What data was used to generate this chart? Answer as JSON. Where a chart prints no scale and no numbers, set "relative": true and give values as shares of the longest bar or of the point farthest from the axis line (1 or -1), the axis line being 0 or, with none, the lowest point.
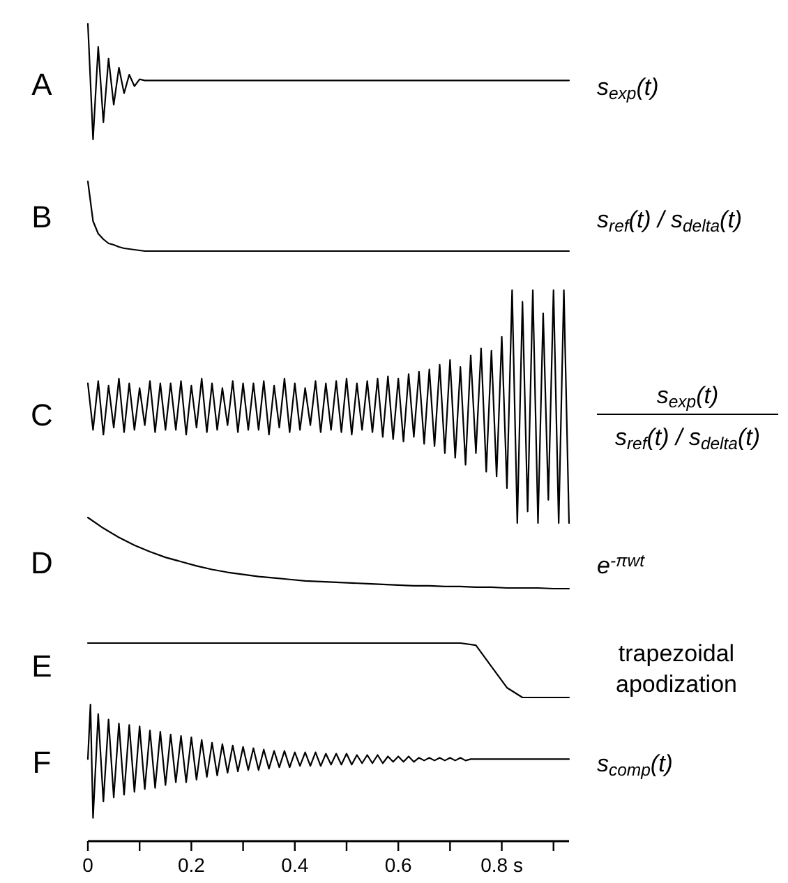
{
  "chart_data": [
    {
      "type": "line",
      "title": "A",
      "ylabel": "s$_{exp}$(t)",
      "relative": true,
      "tick_labels": false,
      "color": "#000000",
      "x": [
        0,
        0.01,
        0.02,
        0.03,
        0.04,
        0.05,
        0.06,
        0.07,
        0.08,
        0.09,
        0.1,
        0.11,
        0.12,
        0.13,
        0.14,
        0.15,
        0.16,
        0.17,
        0.18,
        0.19,
        0.2,
        0.21,
        0.22,
        0.23,
        0.24,
        0.25,
        0.26,
        0.27,
        0.28,
        0.29,
        0.3,
        0.31,
        0.32,
        0.33,
        0.34,
        0.35,
        0.36,
        0.37,
        0.38,
        0.39,
        0.4,
        0.41,
        0.42,
        0.43,
        0.44,
        0.45,
        0.46,
        0.47,
        0.48,
        0.49,
        0.5,
        0.51,
        0.52,
        0.53,
        0.54,
        0.55,
        0.56,
        0.57,
        0.58,
        0.59,
        0.6,
        0.61,
        0.62,
        0.63,
        0.64,
        0.65,
        0.66,
        0.67,
        0.68,
        0.69,
        0.7,
        0.71,
        0.72,
        0.73,
        0.74,
        0.75,
        0.76,
        0.77,
        0.78,
        0.79,
        0.8,
        0.81,
        0.82,
        0.83,
        0.84,
        0.85,
        0.86,
        0.87,
        0.88,
        0.89,
        0.9,
        0.91,
        0.92,
        0.93
      ],
      "values": [
        1,
        0,
        0.8,
        0.15,
        0.7,
        0.3,
        0.62,
        0.4,
        0.56,
        0.46,
        0.52,
        0.51,
        0.51,
        0.51,
        0.51,
        0.51,
        0.51,
        0.51,
        0.51,
        0.51,
        0.51,
        0.51,
        0.51,
        0.51,
        0.51,
        0.51,
        0.51,
        0.51,
        0.51,
        0.51,
        0.51,
        0.51,
        0.51,
        0.51,
        0.51,
        0.51,
        0.51,
        0.51,
        0.51,
        0.51,
        0.51,
        0.51,
        0.51,
        0.51,
        0.51,
        0.51,
        0.51,
        0.51,
        0.51,
        0.51,
        0.51,
        0.51,
        0.51,
        0.51,
        0.51,
        0.51,
        0.51,
        0.51,
        0.51,
        0.51,
        0.51,
        0.51,
        0.51,
        0.51,
        0.51,
        0.51,
        0.51,
        0.51,
        0.51,
        0.51,
        0.51,
        0.51,
        0.51,
        0.51,
        0.51,
        0.51,
        0.51,
        0.51,
        0.51,
        0.51,
        0.51,
        0.51,
        0.51,
        0.51,
        0.51,
        0.51,
        0.51,
        0.51,
        0.51,
        0.51,
        0.51,
        0.51,
        0.51,
        0.51
      ]
    },
    {
      "type": "line",
      "title": "B",
      "ylabel": "s$_{ref}$(t) / s$_{delta}$(t)",
      "relative": true,
      "tick_labels": false,
      "color": "#000000",
      "x": [
        0,
        0.01,
        0.02,
        0.03,
        0.04,
        0.05,
        0.06,
        0.07,
        0.08,
        0.09,
        0.1,
        0.11,
        0.12,
        0.13,
        0.14,
        0.15,
        0.16,
        0.17,
        0.18,
        0.19,
        0.2,
        0.21,
        0.22,
        0.23,
        0.24,
        0.25,
        0.26,
        0.27,
        0.28,
        0.29,
        0.3,
        0.31,
        0.32,
        0.33,
        0.34,
        0.35,
        0.36,
        0.37,
        0.38,
        0.39,
        0.4,
        0.41,
        0.42,
        0.43,
        0.44,
        0.45,
        0.46,
        0.47,
        0.48,
        0.49,
        0.5,
        0.51,
        0.52,
        0.53,
        0.54,
        0.55,
        0.56,
        0.57,
        0.58,
        0.59,
        0.6,
        0.61,
        0.62,
        0.63,
        0.64,
        0.65,
        0.66,
        0.67,
        0.68,
        0.69,
        0.7,
        0.71,
        0.72,
        0.73,
        0.74,
        0.75,
        0.76,
        0.77,
        0.78,
        0.79,
        0.8,
        0.81,
        0.82,
        0.83,
        0.84,
        0.85,
        0.86,
        0.87,
        0.88,
        0.89,
        0.9,
        0.91,
        0.92,
        0.93
      ],
      "values": [
        1,
        0.43,
        0.25,
        0.17,
        0.11,
        0.09,
        0.06,
        0.04,
        0.03,
        0.02,
        0.01,
        0,
        0,
        0,
        0,
        0,
        0,
        0,
        0,
        0,
        0,
        0,
        0,
        0,
        0,
        0,
        0,
        0,
        0,
        0,
        0,
        0,
        0,
        0,
        0,
        0,
        0,
        0,
        0,
        0,
        0,
        0,
        0,
        0,
        0,
        0,
        0,
        0,
        0,
        0,
        0,
        0,
        0,
        0,
        0,
        0,
        0,
        0,
        0,
        0,
        0,
        0,
        0,
        0,
        0,
        0,
        0,
        0,
        0,
        0,
        0,
        0,
        0,
        0,
        0,
        0,
        0,
        0,
        0,
        0,
        0,
        0,
        0,
        0,
        0,
        0,
        0,
        0,
        0,
        0,
        0,
        0,
        0,
        0
      ]
    },
    {
      "type": "line",
      "title": "C",
      "ylabel": "s$_{exp}$(t)",
      "annotations": [
        "s$_{ref}$(t) / s$_{delta}$(t)"
      ],
      "relative": true,
      "tick_labels": false,
      "color": "#000000",
      "x": [
        0,
        0.01,
        0.02,
        0.03,
        0.04,
        0.05,
        0.06,
        0.07,
        0.08,
        0.09,
        0.1,
        0.11,
        0.12,
        0.13,
        0.14,
        0.15,
        0.16,
        0.17,
        0.18,
        0.19,
        0.2,
        0.21,
        0.22,
        0.23,
        0.24,
        0.25,
        0.26,
        0.27,
        0.28,
        0.29,
        0.3,
        0.31,
        0.32,
        0.33,
        0.34,
        0.35,
        0.36,
        0.37,
        0.38,
        0.39,
        0.4,
        0.41,
        0.42,
        0.43,
        0.44,
        0.45,
        0.46,
        0.47,
        0.48,
        0.49,
        0.5,
        0.51,
        0.52,
        0.53,
        0.54,
        0.55,
        0.56,
        0.57,
        0.58,
        0.59,
        0.6,
        0.61,
        0.62,
        0.63,
        0.64,
        0.65,
        0.66,
        0.67,
        0.68,
        0.69,
        0.7,
        0.71,
        0.72,
        0.73,
        0.74,
        0.75,
        0.76,
        0.77,
        0.78,
        0.79,
        0.8,
        0.81,
        0.82,
        0.83,
        0.84,
        0.85,
        0.86,
        0.87,
        0.88,
        0.89,
        0.9,
        0.91,
        0.92,
        0.93
      ],
      "values": [
        0.6,
        0.4,
        0.61,
        0.38,
        0.59,
        0.41,
        0.62,
        0.39,
        0.6,
        0.4,
        0.58,
        0.42,
        0.61,
        0.39,
        0.6,
        0.4,
        0.6,
        0.4,
        0.61,
        0.38,
        0.59,
        0.41,
        0.62,
        0.39,
        0.6,
        0.4,
        0.58,
        0.42,
        0.61,
        0.39,
        0.6,
        0.4,
        0.6,
        0.4,
        0.61,
        0.38,
        0.59,
        0.41,
        0.62,
        0.39,
        0.6,
        0.4,
        0.58,
        0.42,
        0.61,
        0.39,
        0.6,
        0.4,
        0.61,
        0.39,
        0.62,
        0.38,
        0.6,
        0.4,
        0.61,
        0.39,
        0.62,
        0.37,
        0.63,
        0.36,
        0.62,
        0.35,
        0.64,
        0.37,
        0.65,
        0.34,
        0.66,
        0.33,
        0.68,
        0.3,
        0.7,
        0.28,
        0.67,
        0.25,
        0.72,
        0.3,
        0.75,
        0.22,
        0.74,
        0.2,
        0.8,
        0.15,
        1,
        0,
        0.95,
        0.05,
        1,
        0,
        0.9,
        0.1,
        1,
        0,
        1,
        0
      ]
    },
    {
      "type": "line",
      "title": "D",
      "ylabel": "e$^{-πwt}$",
      "relative": true,
      "tick_labels": false,
      "color": "#000000",
      "x": [
        0,
        0.03,
        0.06,
        0.09,
        0.12,
        0.15,
        0.18,
        0.21,
        0.24,
        0.27,
        0.3,
        0.33,
        0.36,
        0.39,
        0.42,
        0.45,
        0.48,
        0.51,
        0.54,
        0.57,
        0.6,
        0.63,
        0.66,
        0.69,
        0.72,
        0.75,
        0.78,
        0.81,
        0.84,
        0.87,
        0.9,
        0.93
      ],
      "values": [
        1,
        0.85,
        0.72,
        0.61,
        0.52,
        0.44,
        0.38,
        0.32,
        0.27,
        0.23,
        0.2,
        0.17,
        0.15,
        0.13,
        0.11,
        0.1,
        0.09,
        0.08,
        0.07,
        0.06,
        0.05,
        0.04,
        0.04,
        0.03,
        0.03,
        0.02,
        0.02,
        0.01,
        0.01,
        0.01,
        0,
        0
      ]
    },
    {
      "type": "line",
      "title": "E",
      "ylabel": "trapezoidal apodization",
      "relative": true,
      "tick_labels": false,
      "color": "#000000",
      "x": [
        0,
        0.03,
        0.06,
        0.09,
        0.12,
        0.15,
        0.18,
        0.21,
        0.24,
        0.27,
        0.3,
        0.33,
        0.36,
        0.39,
        0.42,
        0.45,
        0.48,
        0.51,
        0.54,
        0.57,
        0.6,
        0.63,
        0.66,
        0.69,
        0.72,
        0.75,
        0.78,
        0.81,
        0.84,
        0.87,
        0.9,
        0.93
      ],
      "values": [
        1,
        1,
        1,
        1,
        1,
        1,
        1,
        1,
        1,
        1,
        1,
        1,
        1,
        1,
        1,
        1,
        1,
        1,
        1,
        1,
        1,
        1,
        1,
        1,
        1,
        0.96,
        0.57,
        0.18,
        0,
        0,
        0,
        0
      ]
    },
    {
      "type": "line",
      "title": "F",
      "ylabel": "s$_{comp}$(t)",
      "relative": true,
      "xlim": [
        0,
        0.93
      ],
      "color": "#000000",
      "xticks": [
        0,
        {
          "value": 0.1,
          "label": null
        },
        0.2,
        {
          "value": 0.3,
          "label": null
        },
        0.4,
        {
          "value": 0.5,
          "label": null
        },
        0.6,
        {
          "value": 0.7,
          "label": null
        },
        {
          "value": 0.8,
          "label": "0.8 s"
        },
        {
          "value": 0.9,
          "label": null
        }
      ],
      "x": [
        0,
        0.005,
        0.01,
        0.02,
        0.03,
        0.04,
        0.05,
        0.06,
        0.07,
        0.08,
        0.09,
        0.1,
        0.11,
        0.12,
        0.13,
        0.14,
        0.15,
        0.16,
        0.17,
        0.18,
        0.19,
        0.2,
        0.21,
        0.22,
        0.23,
        0.24,
        0.25,
        0.26,
        0.27,
        0.28,
        0.29,
        0.3,
        0.31,
        0.32,
        0.33,
        0.34,
        0.35,
        0.36,
        0.37,
        0.38,
        0.39,
        0.4,
        0.41,
        0.42,
        0.43,
        0.44,
        0.45,
        0.46,
        0.47,
        0.48,
        0.49,
        0.5,
        0.51,
        0.52,
        0.53,
        0.54,
        0.55,
        0.56,
        0.57,
        0.58,
        0.59,
        0.6,
        0.61,
        0.62,
        0.63,
        0.64,
        0.65,
        0.66,
        0.67,
        0.68,
        0.69,
        0.7,
        0.71,
        0.72,
        0.73,
        0.74,
        0.75,
        0.76,
        0.77,
        0.78,
        0.79,
        0.8,
        0.93
      ],
      "values": [
        0.6,
        1,
        0.17,
        0.93,
        0.29,
        0.89,
        0.32,
        0.86,
        0.34,
        0.85,
        0.36,
        0.84,
        0.38,
        0.81,
        0.39,
        0.8,
        0.41,
        0.78,
        0.43,
        0.77,
        0.43,
        0.76,
        0.45,
        0.74,
        0.47,
        0.72,
        0.48,
        0.71,
        0.5,
        0.7,
        0.51,
        0.69,
        0.52,
        0.68,
        0.52,
        0.67,
        0.53,
        0.66,
        0.54,
        0.66,
        0.54,
        0.65,
        0.55,
        0.65,
        0.55,
        0.65,
        0.55,
        0.64,
        0.56,
        0.64,
        0.56,
        0.64,
        0.56,
        0.63,
        0.57,
        0.63,
        0.57,
        0.63,
        0.57,
        0.62,
        0.58,
        0.62,
        0.58,
        0.62,
        0.58,
        0.61,
        0.59,
        0.61,
        0.59,
        0.61,
        0.59,
        0.61,
        0.59,
        0.61,
        0.59,
        0.6,
        0.6,
        0.6,
        0.6,
        0.6,
        0.6,
        0.6,
        0.6
      ]
    }
  ]
}
